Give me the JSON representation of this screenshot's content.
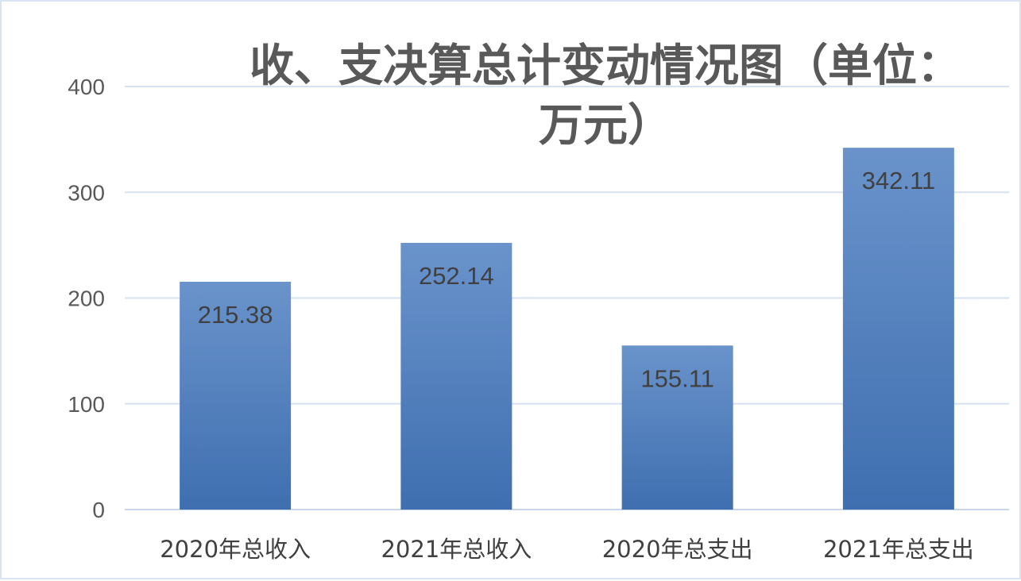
{
  "chart_data": {
    "type": "bar",
    "title_line1": "收、支决算总计变动情况图（单位：",
    "title_line2": "万元）",
    "categories": [
      "2020年总收入",
      "2021年总收入",
      "2020年总支出",
      "2021年总支出"
    ],
    "values": [
      215.38,
      252.14,
      155.11,
      342.11
    ],
    "data_labels": [
      "215.38",
      "252.14",
      "155.11",
      "342.11"
    ],
    "y_ticks": [
      "0",
      "100",
      "200",
      "300",
      "400"
    ],
    "ylim": [
      0,
      400
    ],
    "grid": true,
    "legend": "none",
    "colors": {
      "bar_top": "#6a93cb",
      "bar_bottom": "#3f6fb0"
    }
  }
}
